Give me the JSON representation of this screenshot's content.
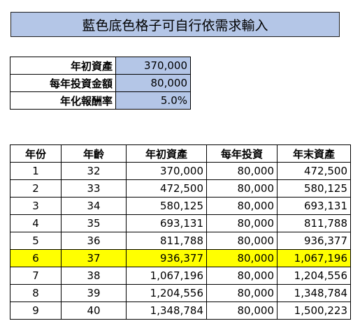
{
  "banner": "藍色底色格子可自行依需求輸入",
  "params": [
    {
      "label": "年初資產",
      "value": "370,000"
    },
    {
      "label": "每年投資金額",
      "value": "80,000"
    },
    {
      "label": "年化報酬率",
      "value": "5.0%"
    }
  ],
  "table": {
    "headers": [
      "年份",
      "年齡",
      "年初資產",
      "每年投資",
      "年末資產"
    ],
    "highlight_row_index": 5,
    "highlight_color": "#ffff00",
    "input_cell_color": "#b4c6e7",
    "rows": [
      [
        "1",
        "32",
        "370,000",
        "80,000",
        "472,500"
      ],
      [
        "2",
        "33",
        "472,500",
        "80,000",
        "580,125"
      ],
      [
        "3",
        "34",
        "580,125",
        "80,000",
        "693,131"
      ],
      [
        "4",
        "35",
        "693,131",
        "80,000",
        "811,788"
      ],
      [
        "5",
        "36",
        "811,788",
        "80,000",
        "936,377"
      ],
      [
        "6",
        "37",
        "936,377",
        "80,000",
        "1,067,196"
      ],
      [
        "7",
        "38",
        "1,067,196",
        "80,000",
        "1,204,556"
      ],
      [
        "8",
        "39",
        "1,204,556",
        "80,000",
        "1,348,784"
      ],
      [
        "9",
        "40",
        "1,348,784",
        "80,000",
        "1,500,223"
      ]
    ]
  }
}
